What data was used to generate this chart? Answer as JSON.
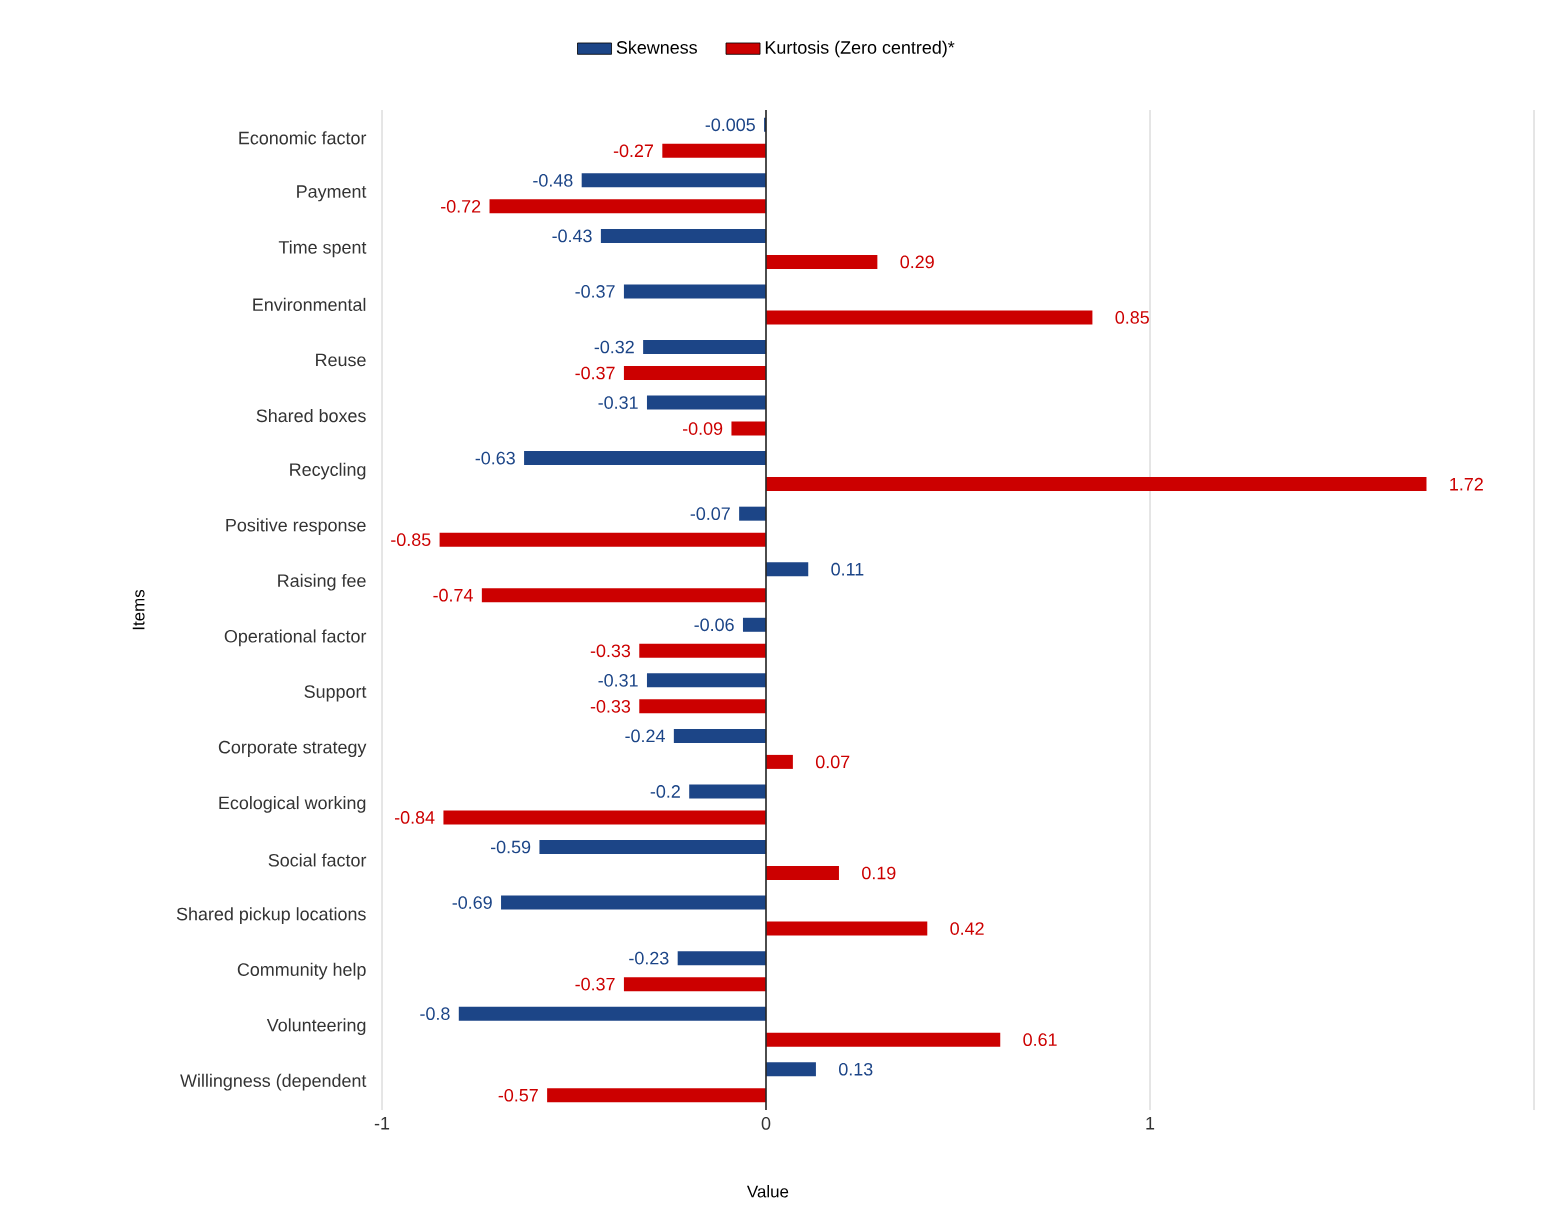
{
  "chart_data": {
    "type": "bar",
    "orientation": "horizontal",
    "xlabel": "Value",
    "ylabel": "Items",
    "categories": [
      "Economic factor",
      "Payment",
      "Time spent",
      "Environmental",
      "Reuse",
      "Shared boxes",
      "Recycling",
      "Positive response",
      "Raising fee",
      "Operational factor",
      "Support",
      "Corporate strategy",
      "Ecological working",
      "Social factor",
      "Shared pickup locations",
      "Community help",
      "Volunteering",
      "Willingness (dependent"
    ],
    "series": [
      {
        "name": "Skewness",
        "color": "#1c4587",
        "values": [
          -0.005,
          -0.48,
          -0.43,
          -0.37,
          -0.32,
          -0.31,
          -0.63,
          -0.07,
          0.11,
          -0.06,
          -0.31,
          -0.24,
          -0.2,
          -0.59,
          -0.69,
          -0.23,
          -0.8,
          0.13
        ]
      },
      {
        "name": "Kurtosis (Zero centred)*",
        "color": "#cc0000",
        "values": [
          -0.27,
          -0.72,
          0.29,
          0.85,
          -0.37,
          -0.09,
          1.72,
          -0.85,
          -0.74,
          -0.33,
          -0.33,
          0.07,
          -0.84,
          0.19,
          0.42,
          -0.37,
          0.61,
          -0.57
        ]
      }
    ],
    "xlim": [
      -1,
      2
    ],
    "xticks": [
      -1,
      0,
      1,
      {
        "value": 2,
        "label": null
      }
    ],
    "grid": "x",
    "legend": "top",
    "data_labels": true
  }
}
